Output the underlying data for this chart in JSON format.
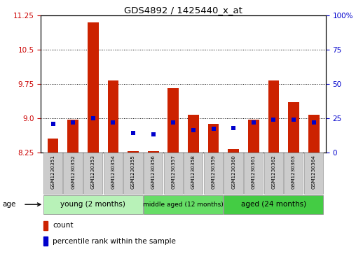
{
  "title": "GDS4892 / 1425440_x_at",
  "samples": [
    "GSM1230351",
    "GSM1230352",
    "GSM1230353",
    "GSM1230354",
    "GSM1230355",
    "GSM1230356",
    "GSM1230357",
    "GSM1230358",
    "GSM1230359",
    "GSM1230360",
    "GSM1230361",
    "GSM1230362",
    "GSM1230363",
    "GSM1230364"
  ],
  "count_values": [
    8.55,
    8.97,
    11.1,
    9.82,
    8.27,
    8.27,
    9.65,
    9.08,
    8.88,
    8.32,
    8.96,
    9.82,
    9.35,
    9.07
  ],
  "percentile_values": [
    21,
    22,
    25,
    22,
    14,
    13,
    22,
    16,
    17,
    18,
    22,
    24,
    24,
    22
  ],
  "ylim_left": [
    8.25,
    11.25
  ],
  "ylim_right": [
    0,
    100
  ],
  "yticks_left": [
    8.25,
    9.0,
    9.75,
    10.5,
    11.25
  ],
  "yticks_right": [
    0,
    25,
    50,
    75,
    100
  ],
  "left_color": "#cc0000",
  "right_color": "#0000cc",
  "bar_color": "#cc0000",
  "dot_color": "#0000cc",
  "groups": [
    {
      "label": "young (2 months)",
      "start": 0,
      "end": 5
    },
    {
      "label": "middle aged (12 months)",
      "start": 5,
      "end": 9
    },
    {
      "label": "aged (24 months)",
      "start": 9,
      "end": 14
    }
  ],
  "group_colors": [
    "#b8f2b8",
    "#66dd66",
    "#44cc44"
  ],
  "group_label": "age",
  "legend_count_label": "count",
  "legend_percentile_label": "percentile rank within the sample",
  "bar_color_r": "#cc2200",
  "dot_color_b": "#0000cc",
  "bar_width": 0.55,
  "base_value": 8.25,
  "plot_bg": "#ffffff",
  "label_box_color": "#cccccc",
  "label_box_edge": "#999999"
}
